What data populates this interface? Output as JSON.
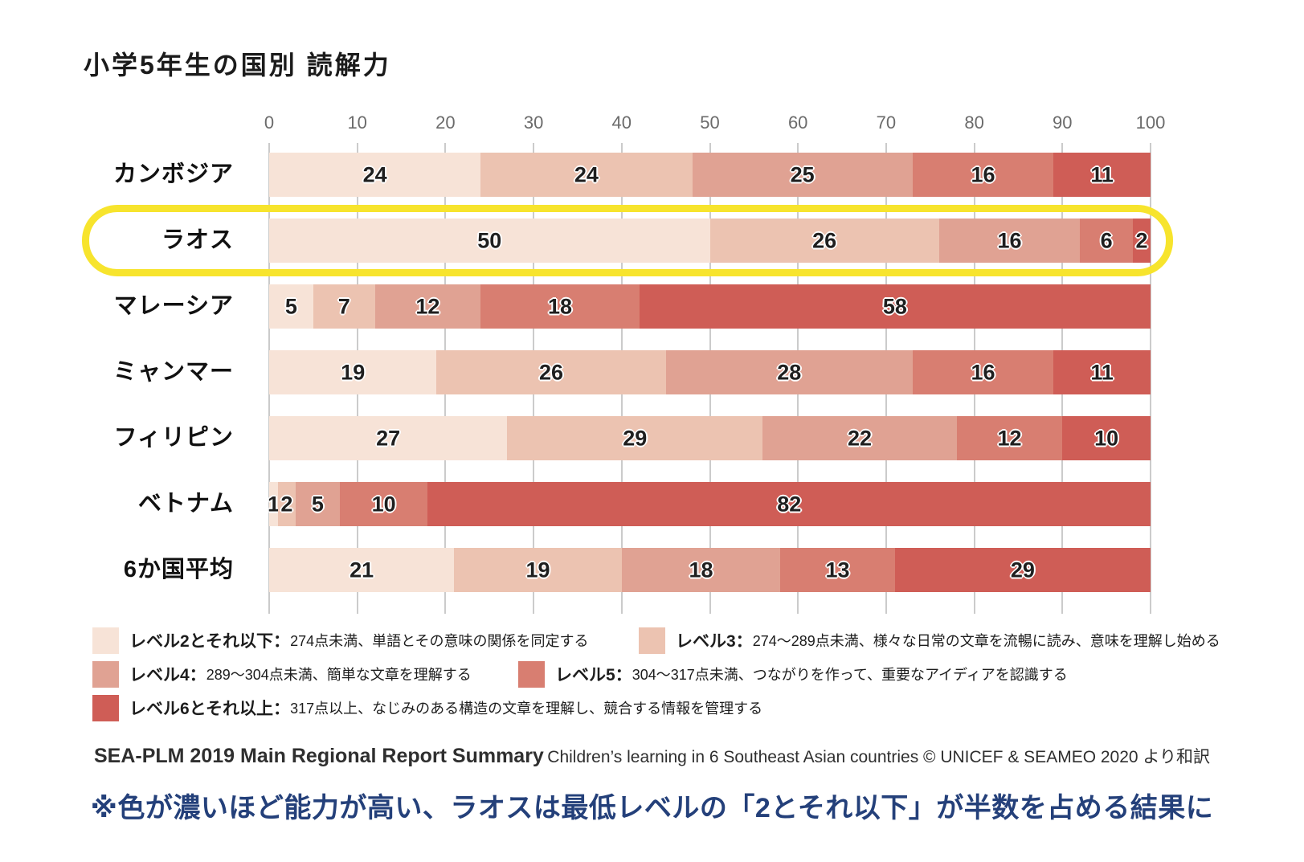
{
  "title": "小学5年生の国別 読解力",
  "chart_data": {
    "type": "bar",
    "stacked": true,
    "orientation": "horizontal",
    "title": "小学5年生の国別 読解力",
    "xlim": [
      0,
      100
    ],
    "x_ticks": [
      0,
      10,
      20,
      30,
      40,
      50,
      60,
      70,
      80,
      90,
      100
    ],
    "grid": true,
    "categories": [
      "カンボジア",
      "ラオス",
      "マレーシア",
      "ミャンマー",
      "フィリピン",
      "ベトナム",
      "6か国平均"
    ],
    "series": [
      {
        "name": "レベル2とそれ以下",
        "color": "#f7e3d7",
        "values": [
          24,
          50,
          5,
          19,
          27,
          1,
          21
        ]
      },
      {
        "name": "レベル3",
        "color": "#ecc3b1",
        "values": [
          24,
          26,
          7,
          26,
          29,
          2,
          19
        ]
      },
      {
        "name": "レベル4",
        "color": "#e0a293",
        "values": [
          25,
          16,
          12,
          28,
          22,
          5,
          18
        ]
      },
      {
        "name": "レベル5",
        "color": "#d87e71",
        "values": [
          16,
          6,
          18,
          16,
          12,
          10,
          13
        ]
      },
      {
        "name": "レベル6とそれ以上",
        "color": "#cf5d56",
        "values": [
          11,
          2,
          58,
          11,
          10,
          82,
          29
        ]
      }
    ],
    "highlighted_category": "ラオス",
    "highlight_color": "#f7e42d",
    "legend_position": "bottom"
  },
  "legend": {
    "items": [
      {
        "label": "レベル2とそれ以下：",
        "desc": "274点未満、単語とその意味の関係を同定する",
        "color": "#f7e3d7"
      },
      {
        "label": "レベル3：",
        "desc": "274〜289点未満、様々な日常の文章を流暢に読み、意味を理解し始める",
        "color": "#ecc3b1"
      },
      {
        "label": "レベル4：",
        "desc": "289〜304点未満、簡単な文章を理解する",
        "color": "#e0a293"
      },
      {
        "label": "レベル5：",
        "desc": "304〜317点未満、つながりを作って、重要なアイディアを認識する",
        "color": "#d87e71"
      },
      {
        "label": "レベル6とそれ以上：",
        "desc": "317点以上、なじみのある構造の文章を理解し、競合する情報を管理する",
        "color": "#cf5d56"
      }
    ],
    "rows": [
      [
        0,
        1
      ],
      [
        2,
        3
      ],
      [
        4
      ]
    ]
  },
  "source": {
    "main": "SEA-PLM 2019 Main Regional Report Summary",
    "sub": "Children’s learning in 6 Southeast Asian countries © UNICEF & SEAMEO 2020 より和訳"
  },
  "note": "※色が濃いほど能力が高い、ラオスは最低レベルの「2とそれ以下」が半数を占める結果に"
}
